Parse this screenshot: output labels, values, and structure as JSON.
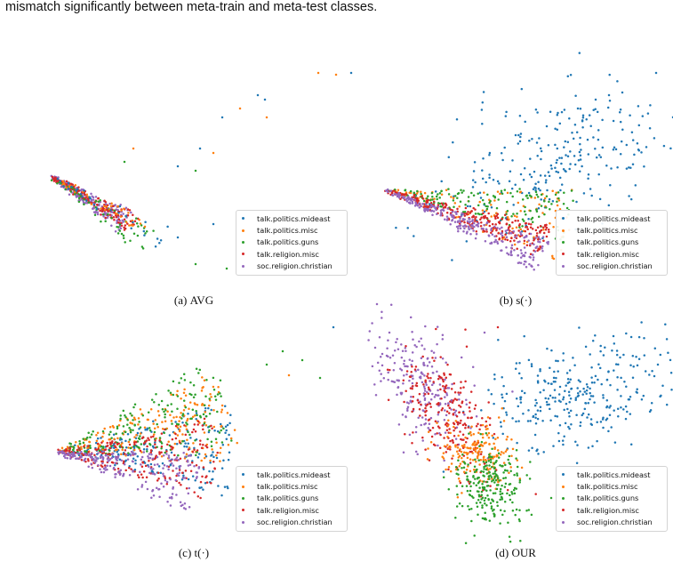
{
  "header_text": "mismatch significantly between meta-train and meta-test classes.",
  "legend": [
    {
      "label": "talk.politics.mideast",
      "color": "#1f77b4"
    },
    {
      "label": "talk.politics.misc",
      "color": "#ff7f0e"
    },
    {
      "label": "talk.politics.guns",
      "color": "#2ca02c"
    },
    {
      "label": "talk.religion.misc",
      "color": "#d62728"
    },
    {
      "label": "soc.religion.christian",
      "color": "#9467bd"
    }
  ],
  "captions": [
    {
      "tag": "(a)",
      "name": "AVG"
    },
    {
      "tag": "(b)",
      "name": "s(·)"
    },
    {
      "tag": "(c)",
      "name": "t(·)"
    },
    {
      "tag": "(d)",
      "name": "OUR"
    }
  ],
  "chart_data": [
    {
      "type": "scatter",
      "id": "a",
      "title": "",
      "xlabel": "",
      "ylabel": "",
      "series_names": [
        "talk.politics.mideast",
        "talk.politics.misc",
        "talk.politics.guns",
        "talk.religion.misc",
        "soc.religion.christian"
      ],
      "axes": "none",
      "legend": "bottom-right"
    },
    {
      "type": "scatter",
      "id": "b",
      "title": "",
      "xlabel": "",
      "ylabel": "",
      "series_names": [
        "talk.politics.mideast",
        "talk.politics.misc",
        "talk.politics.guns",
        "talk.religion.misc",
        "soc.religion.christian"
      ],
      "axes": "none",
      "legend": "bottom-right"
    },
    {
      "type": "scatter",
      "id": "c",
      "title": "",
      "xlabel": "",
      "ylabel": "",
      "series_names": [
        "talk.politics.mideast",
        "talk.politics.misc",
        "talk.politics.guns",
        "talk.religion.misc",
        "soc.religion.christian"
      ],
      "axes": "none",
      "legend": "bottom-right"
    },
    {
      "type": "scatter",
      "id": "d",
      "title": "",
      "xlabel": "",
      "ylabel": "",
      "series_names": [
        "talk.politics.mideast",
        "talk.politics.misc",
        "talk.politics.guns",
        "talk.religion.misc",
        "soc.religion.christian"
      ],
      "axes": "none",
      "legend": "bottom-right"
    }
  ]
}
